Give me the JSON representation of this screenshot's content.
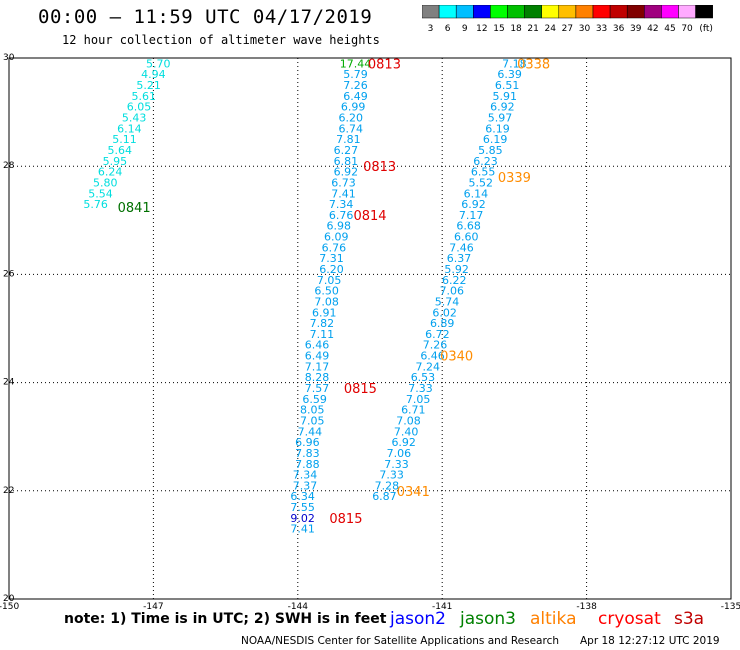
{
  "header": {
    "title": "00:00 – 11:59 UTC 04/17/2019",
    "subtitle": "12 hour collection of altimeter wave heights"
  },
  "colorbar": {
    "colors": [
      "#808080",
      "#00ffff",
      "#00bfff",
      "#0000ff",
      "#00ff00",
      "#00c000",
      "#008000",
      "#ffff00",
      "#ffbf00",
      "#ff8000",
      "#ff0000",
      "#c00000",
      "#800000",
      "#a0007f",
      "#ff00ff",
      "#ffaaff",
      "#000000"
    ],
    "labels": [
      "3",
      "6",
      "9",
      "12",
      "15",
      "18",
      "21",
      "24",
      "27",
      "30",
      "33",
      "36",
      "39",
      "42",
      "45",
      "70",
      "(ft)"
    ]
  },
  "footer": {
    "note": "note: 1) Time is in UTC; 2) SWH is in feet",
    "credit": "NOAA/NESDIS Center for Satellite Applications and Research",
    "timestamp": "Apr 18 12:27:12 UTC 2019"
  },
  "satellites": [
    {
      "name": "jason2",
      "color": "#0000ff"
    },
    {
      "name": "jason3",
      "color": "#008000"
    },
    {
      "name": "altika",
      "color": "#ff8000"
    },
    {
      "name": "cryosat",
      "color": "#ff0000"
    },
    {
      "name": "s3a",
      "color": "#c00000"
    }
  ],
  "chart_data": {
    "type": "scatter",
    "title": "12 hour collection of altimeter wave heights",
    "xlim": [
      -150,
      -135
    ],
    "ylim": [
      20,
      30
    ],
    "x_ticks": [
      "-150",
      "-147",
      "-144",
      "-141",
      "-138",
      "-135"
    ],
    "y_ticks": [
      "20",
      "22",
      "24",
      "26",
      "28",
      "30"
    ],
    "grid": true,
    "colors": {
      "cyan": "#00dede",
      "blue": "#00a0ee",
      "darkblue": "#0000cc",
      "green": "#00aa00",
      "darkgreen": "#007000",
      "red": "#e00000",
      "orange": "#ff8c00"
    },
    "series": [
      {
        "name": "0841",
        "color": "cyan",
        "label_color": "darkgreen",
        "points": [
          [
            -146.9,
            29.9,
            "5.70"
          ],
          [
            -147.0,
            29.7,
            "4.94"
          ],
          [
            -147.1,
            29.5,
            "5.21"
          ],
          [
            -147.2,
            29.3,
            "5.61"
          ],
          [
            -147.3,
            29.1,
            "6.05"
          ],
          [
            -147.4,
            28.9,
            "5.43"
          ],
          [
            -147.5,
            28.7,
            "6.14"
          ],
          [
            -147.6,
            28.5,
            "5.11"
          ],
          [
            -147.7,
            28.3,
            "5.64"
          ],
          [
            -147.8,
            28.1,
            "5.95"
          ],
          [
            -147.9,
            27.9,
            "6.24"
          ],
          [
            -148.0,
            27.7,
            "5.80"
          ],
          [
            -148.1,
            27.5,
            "5.54"
          ],
          [
            -148.2,
            27.3,
            "5.76"
          ]
        ],
        "time_label": {
          "text": "0841",
          "at": [
            -147.4,
            27.25
          ]
        }
      },
      {
        "name": "0813-0815",
        "color": "blue",
        "label_color": "red",
        "points": [
          [
            -142.8,
            29.9,
            "17.44"
          ],
          [
            -142.8,
            29.7,
            "5.79"
          ],
          [
            -142.8,
            29.5,
            "7.26"
          ],
          [
            -142.8,
            29.3,
            "6.49"
          ],
          [
            -142.85,
            29.1,
            "6.99"
          ],
          [
            -142.9,
            28.9,
            "6.20"
          ],
          [
            -142.9,
            28.7,
            "6.74"
          ],
          [
            -142.95,
            28.5,
            "7.81"
          ],
          [
            -143.0,
            28.3,
            "6.27"
          ],
          [
            -143.0,
            28.1,
            "6.81"
          ],
          [
            -143.0,
            27.9,
            "6.92"
          ],
          [
            -143.05,
            27.7,
            "6.73"
          ],
          [
            -143.05,
            27.5,
            "7.41"
          ],
          [
            -143.1,
            27.3,
            "7.34"
          ],
          [
            -143.1,
            27.1,
            "6.76"
          ],
          [
            -143.15,
            26.9,
            "6.98"
          ],
          [
            -143.2,
            26.7,
            "6.09"
          ],
          [
            -143.25,
            26.5,
            "6.76"
          ],
          [
            -143.3,
            26.3,
            "7.31"
          ],
          [
            -143.3,
            26.1,
            "6.20"
          ],
          [
            -143.35,
            25.9,
            "7.05"
          ],
          [
            -143.4,
            25.7,
            "6.50"
          ],
          [
            -143.4,
            25.5,
            "7.08"
          ],
          [
            -143.45,
            25.3,
            "6.91"
          ],
          [
            -143.5,
            25.1,
            "7.82"
          ],
          [
            -143.5,
            24.9,
            "7.11"
          ],
          [
            -143.6,
            24.7,
            "6.46"
          ],
          [
            -143.6,
            24.5,
            "6.49"
          ],
          [
            -143.6,
            24.3,
            "7.17"
          ],
          [
            -143.6,
            24.1,
            "8.28"
          ],
          [
            -143.6,
            23.9,
            "7.57"
          ],
          [
            -143.65,
            23.7,
            "6.59"
          ],
          [
            -143.7,
            23.5,
            "8.05"
          ],
          [
            -143.7,
            23.3,
            "7.05"
          ],
          [
            -143.75,
            23.1,
            "7.44"
          ],
          [
            -143.8,
            22.9,
            "6.96"
          ],
          [
            -143.8,
            22.7,
            "7.83"
          ],
          [
            -143.8,
            22.5,
            "7.88"
          ],
          [
            -143.85,
            22.3,
            "7.34"
          ],
          [
            -143.85,
            22.1,
            "7.37"
          ],
          [
            -143.9,
            21.9,
            "6.34"
          ],
          [
            -143.9,
            21.7,
            "7.55"
          ],
          [
            -143.9,
            21.5,
            "9.02"
          ],
          [
            -143.9,
            21.3,
            "7.41"
          ]
        ],
        "time_labels": [
          {
            "text": "0813",
            "at": [
              -142.2,
              29.9
            ]
          },
          {
            "text": "0813",
            "at": [
              -142.3,
              28.0
            ]
          },
          {
            "text": "0814",
            "at": [
              -142.5,
              27.1
            ]
          },
          {
            "text": "0815",
            "at": [
              -142.7,
              23.9
            ]
          },
          {
            "text": "0815",
            "at": [
              -143.0,
              21.5
            ]
          }
        ]
      },
      {
        "name": "0338-0341",
        "color": "blue",
        "label_color": "orange",
        "points": [
          [
            -139.5,
            29.9,
            "7.18"
          ],
          [
            -139.6,
            29.7,
            "6.39"
          ],
          [
            -139.65,
            29.5,
            "6.51"
          ],
          [
            -139.7,
            29.3,
            "5.91"
          ],
          [
            -139.75,
            29.1,
            "6.92"
          ],
          [
            -139.8,
            28.9,
            "5.97"
          ],
          [
            -139.85,
            28.7,
            "6.19"
          ],
          [
            -139.9,
            28.5,
            "6.19"
          ],
          [
            -140.0,
            28.3,
            "5.85"
          ],
          [
            -140.1,
            28.1,
            "6.23"
          ],
          [
            -140.15,
            27.9,
            "6.55"
          ],
          [
            -140.2,
            27.7,
            "5.52"
          ],
          [
            -140.3,
            27.5,
            "6.14"
          ],
          [
            -140.35,
            27.3,
            "6.92"
          ],
          [
            -140.4,
            27.1,
            "7.17"
          ],
          [
            -140.45,
            26.9,
            "6.68"
          ],
          [
            -140.5,
            26.7,
            "6.60"
          ],
          [
            -140.6,
            26.5,
            "7.46"
          ],
          [
            -140.65,
            26.3,
            "6.37"
          ],
          [
            -140.7,
            26.1,
            "5.92"
          ],
          [
            -140.75,
            25.9,
            "6.22"
          ],
          [
            -140.8,
            25.7,
            "7.06"
          ],
          [
            -140.9,
            25.5,
            "5.74"
          ],
          [
            -140.95,
            25.3,
            "6.02"
          ],
          [
            -141.0,
            25.1,
            "6.89"
          ],
          [
            -141.1,
            24.9,
            "6.72"
          ],
          [
            -141.15,
            24.7,
            "7.26"
          ],
          [
            -141.2,
            24.5,
            "6.46"
          ],
          [
            -141.3,
            24.3,
            "7.24"
          ],
          [
            -141.4,
            24.1,
            "6.53"
          ],
          [
            -141.45,
            23.9,
            "7.33"
          ],
          [
            -141.5,
            23.7,
            "7.05"
          ],
          [
            -141.6,
            23.5,
            "6.71"
          ],
          [
            -141.7,
            23.3,
            "7.08"
          ],
          [
            -141.75,
            23.1,
            "7.40"
          ],
          [
            -141.8,
            22.9,
            "6.92"
          ],
          [
            -141.9,
            22.7,
            "7.06"
          ],
          [
            -141.95,
            22.5,
            "7.33"
          ],
          [
            -142.05,
            22.3,
            "7.33"
          ],
          [
            -142.15,
            22.1,
            "7.28"
          ],
          [
            -142.2,
            21.9,
            "6.87"
          ]
        ],
        "time_labels": [
          {
            "text": "0338",
            "at": [
              -139.1,
              29.9
            ]
          },
          {
            "text": "0339",
            "at": [
              -139.5,
              27.8
            ]
          },
          {
            "text": "0340",
            "at": [
              -140.7,
              24.5
            ]
          },
          {
            "text": "0341",
            "at": [
              -141.6,
              22.0
            ]
          }
        ]
      }
    ]
  }
}
